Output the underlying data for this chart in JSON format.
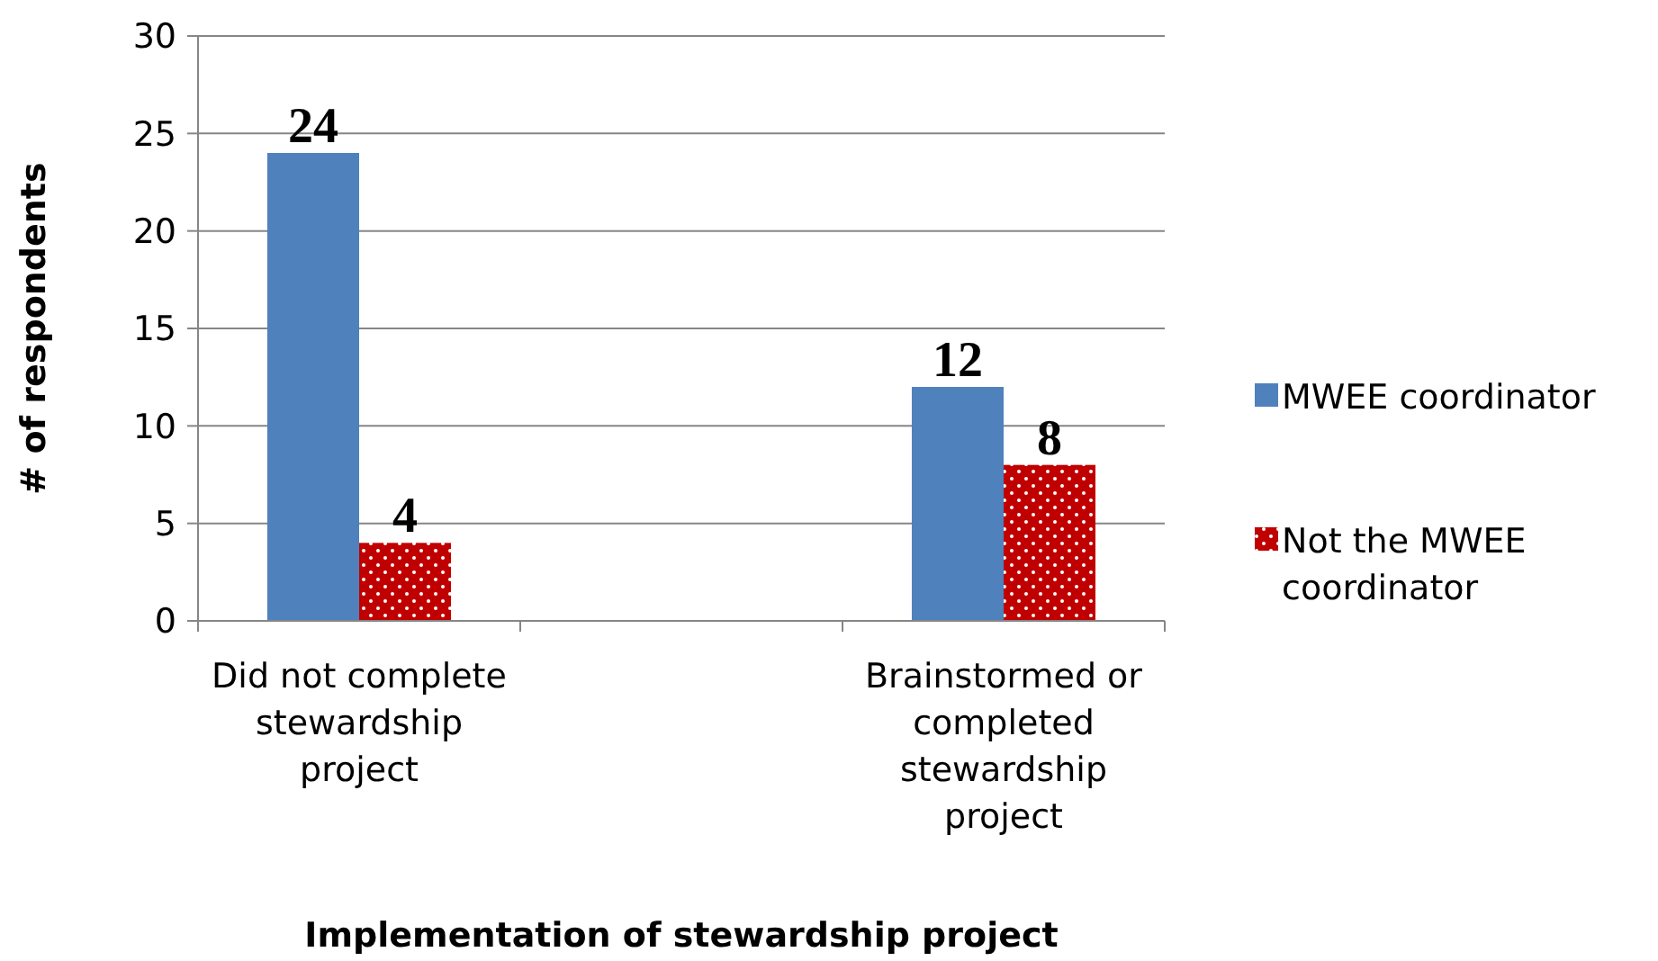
{
  "chart_data": {
    "type": "bar",
    "xlabel": "Implementation of stewardship project",
    "ylabel": "# of respondents",
    "categories": [
      "Did not complete stewardship project",
      null,
      "Brainstormed or completed stewardship project"
    ],
    "series": [
      {
        "name": "MWEE coordinator",
        "color": "#4f81bd",
        "values": [
          24,
          null,
          12
        ]
      },
      {
        "name": "Not the MWEE coordinator",
        "color": "#c00000",
        "values": [
          4,
          null,
          8
        ]
      }
    ],
    "ylim": [
      0,
      30
    ],
    "yticks": [
      0,
      5,
      10,
      15,
      20,
      25,
      30
    ],
    "grid": "y",
    "legend": "right",
    "data_labels": true
  }
}
